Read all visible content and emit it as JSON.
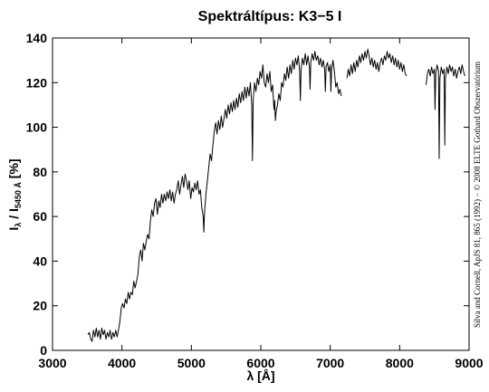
{
  "chart_data": {
    "type": "line",
    "title": "Spektráltípus: K3−5 I",
    "xlabel": "λ [Å]",
    "ylabel": {
      "main": "I",
      "sub1": "λ",
      "mid": " / I",
      "sub2": "5450 Å",
      "tail": " [%]"
    },
    "credit": "Silva and Cornell, ApJS 81, 865 (1992) − © 2008 ELTE Gothard Obszervatórium",
    "xlim": [
      3000,
      9000
    ],
    "ylim": [
      0,
      140
    ],
    "xticks": [
      "3000",
      "4000",
      "5000",
      "6000",
      "7000",
      "8000",
      "9000"
    ],
    "yticks": [
      "0",
      "20",
      "40",
      "60",
      "80",
      "100",
      "120",
      "140"
    ],
    "grid": false,
    "series": [
      {
        "segments": [
          [
            [
              3510,
              7
            ],
            [
              3530,
              8
            ],
            [
              3550,
              5
            ],
            [
              3570,
              4
            ],
            [
              3590,
              9
            ],
            [
              3610,
              6
            ],
            [
              3630,
              10
            ],
            [
              3650,
              6
            ],
            [
              3670,
              9
            ],
            [
              3690,
              5
            ],
            [
              3710,
              10
            ],
            [
              3730,
              7
            ],
            [
              3750,
              9
            ],
            [
              3770,
              5
            ],
            [
              3790,
              8
            ],
            [
              3810,
              6
            ],
            [
              3830,
              9
            ],
            [
              3850,
              5
            ],
            [
              3870,
              8
            ],
            [
              3890,
              6
            ],
            [
              3910,
              9
            ],
            [
              3930,
              6
            ],
            [
              3950,
              9
            ],
            [
              3970,
              13
            ],
            [
              3990,
              19
            ],
            [
              4010,
              21
            ],
            [
              4030,
              19
            ],
            [
              4050,
              23
            ],
            [
              4070,
              21
            ],
            [
              4090,
              26
            ],
            [
              4110,
              23
            ],
            [
              4130,
              26
            ],
            [
              4150,
              25
            ],
            [
              4170,
              31
            ],
            [
              4190,
              28
            ],
            [
              4210,
              31
            ],
            [
              4230,
              34
            ],
            [
              4250,
              42
            ],
            [
              4270,
              45
            ],
            [
              4290,
              40
            ],
            [
              4310,
              48
            ],
            [
              4330,
              45
            ],
            [
              4350,
              49
            ],
            [
              4370,
              52
            ],
            [
              4390,
              50
            ],
            [
              4410,
              58
            ],
            [
              4430,
              63
            ],
            [
              4450,
              60
            ],
            [
              4470,
              66
            ],
            [
              4490,
              68
            ],
            [
              4510,
              61
            ],
            [
              4530,
              67
            ],
            [
              4550,
              64
            ],
            [
              4570,
              70
            ],
            [
              4590,
              66
            ],
            [
              4610,
              70
            ],
            [
              4630,
              67
            ],
            [
              4650,
              71
            ],
            [
              4670,
              68
            ],
            [
              4690,
              72
            ],
            [
              4710,
              67
            ],
            [
              4730,
              71
            ],
            [
              4750,
              66
            ],
            [
              4770,
              70
            ],
            [
              4790,
              72
            ],
            [
              4810,
              76
            ],
            [
              4830,
              70
            ],
            [
              4850,
              74
            ],
            [
              4870,
              78
            ],
            [
              4890,
              73
            ],
            [
              4910,
              79
            ],
            [
              4930,
              76
            ],
            [
              4950,
              72
            ],
            [
              4970,
              76
            ],
            [
              4990,
              68
            ],
            [
              5010,
              73
            ],
            [
              5030,
              71
            ],
            [
              5050,
              75
            ],
            [
              5070,
              72
            ],
            [
              5090,
              76
            ],
            [
              5110,
              70
            ],
            [
              5130,
              72
            ],
            [
              5150,
              64
            ],
            [
              5170,
              60
            ],
            [
              5180,
              53
            ],
            [
              5190,
              62
            ],
            [
              5210,
              70
            ],
            [
              5230,
              76
            ],
            [
              5250,
              82
            ],
            [
              5270,
              88
            ],
            [
              5290,
              85
            ],
            [
              5310,
              92
            ],
            [
              5330,
              98
            ],
            [
              5350,
              102
            ],
            [
              5370,
              97
            ],
            [
              5390,
              103
            ],
            [
              5410,
              99
            ],
            [
              5430,
              105
            ],
            [
              5450,
              100
            ],
            [
              5470,
              104
            ],
            [
              5490,
              108
            ],
            [
              5510,
              104
            ],
            [
              5530,
              110
            ],
            [
              5550,
              106
            ],
            [
              5570,
              111
            ],
            [
              5590,
              107
            ],
            [
              5610,
              112
            ],
            [
              5630,
              108
            ],
            [
              5650,
              113
            ],
            [
              5670,
              109
            ],
            [
              5690,
              115
            ],
            [
              5710,
              111
            ],
            [
              5730,
              116
            ],
            [
              5750,
              112
            ],
            [
              5770,
              118
            ],
            [
              5790,
              113
            ],
            [
              5810,
              118
            ],
            [
              5830,
              114
            ],
            [
              5850,
              120
            ],
            [
              5870,
              110
            ],
            [
              5880,
              85
            ],
            [
              5890,
              112
            ],
            [
              5910,
              120
            ],
            [
              5930,
              116
            ],
            [
              5950,
              122
            ],
            [
              5970,
              119
            ],
            [
              5990,
              125
            ],
            [
              6010,
              122
            ],
            [
              6030,
              128
            ],
            [
              6050,
              120
            ],
            [
              6070,
              118
            ],
            [
              6090,
              124
            ],
            [
              6110,
              120
            ],
            [
              6130,
              125
            ],
            [
              6150,
              116
            ],
            [
              6170,
              119
            ],
            [
              6190,
              108
            ],
            [
              6200,
              112
            ],
            [
              6210,
              103
            ],
            [
              6220,
              107
            ],
            [
              6240,
              110
            ],
            [
              6260,
              115
            ],
            [
              6280,
              112
            ],
            [
              6300,
              120
            ],
            [
              6320,
              118
            ],
            [
              6340,
              124
            ],
            [
              6360,
              121
            ],
            [
              6380,
              127
            ],
            [
              6400,
              122
            ],
            [
              6420,
              128
            ],
            [
              6440,
              124
            ],
            [
              6460,
              130
            ],
            [
              6480,
              126
            ],
            [
              6500,
              131
            ],
            [
              6520,
              128
            ],
            [
              6540,
              132
            ],
            [
              6560,
              125
            ],
            [
              6570,
              112
            ],
            [
              6580,
              126
            ],
            [
              6600,
              131
            ],
            [
              6620,
              128
            ],
            [
              6640,
              133
            ],
            [
              6660,
              128
            ],
            [
              6680,
              132
            ],
            [
              6700,
              127
            ],
            [
              6710,
              117
            ],
            [
              6720,
              129
            ],
            [
              6740,
              133
            ],
            [
              6760,
              130
            ],
            [
              6780,
              134
            ],
            [
              6800,
              130
            ],
            [
              6820,
              132
            ],
            [
              6840,
              128
            ],
            [
              6860,
              131
            ],
            [
              6880,
              127
            ],
            [
              6900,
              130
            ],
            [
              6920,
              126
            ],
            [
              6930,
              116
            ],
            [
              6940,
              127
            ],
            [
              6960,
              129
            ],
            [
              6980,
              125
            ],
            [
              7000,
              128
            ],
            [
              7010,
              116
            ],
            [
              7020,
              126
            ],
            [
              7040,
              130
            ],
            [
              7060,
              125
            ],
            [
              7080,
              118
            ],
            [
              7100,
              120
            ],
            [
              7120,
              115
            ],
            [
              7140,
              117
            ],
            [
              7160,
              114
            ]
          ],
          [
            [
              7240,
              122
            ],
            [
              7260,
              126
            ],
            [
              7280,
              123
            ],
            [
              7300,
              128
            ],
            [
              7320,
              124
            ],
            [
              7340,
              129
            ],
            [
              7360,
              125
            ],
            [
              7380,
              130
            ],
            [
              7400,
              127
            ],
            [
              7420,
              132
            ],
            [
              7440,
              129
            ],
            [
              7460,
              133
            ],
            [
              7480,
              130
            ],
            [
              7500,
              134
            ],
            [
              7520,
              131
            ],
            [
              7540,
              135
            ],
            [
              7560,
              132
            ],
            [
              7580,
              128
            ],
            [
              7600,
              131
            ],
            [
              7620,
              127
            ],
            [
              7640,
              130
            ],
            [
              7660,
              126
            ],
            [
              7680,
              129
            ],
            [
              7700,
              125
            ],
            [
              7720,
              129
            ],
            [
              7740,
              131
            ],
            [
              7760,
              128
            ],
            [
              7780,
              132
            ],
            [
              7800,
              130
            ],
            [
              7820,
              134
            ],
            [
              7840,
              131
            ],
            [
              7860,
              133
            ],
            [
              7880,
              129
            ],
            [
              7900,
              132
            ],
            [
              7920,
              128
            ],
            [
              7940,
              131
            ],
            [
              7960,
              127
            ],
            [
              7980,
              130
            ],
            [
              8000,
              126
            ],
            [
              8020,
              129
            ],
            [
              8040,
              125
            ],
            [
              8060,
              128
            ],
            [
              8080,
              124
            ],
            [
              8100,
              123
            ]
          ],
          [
            [
              8380,
              119
            ],
            [
              8400,
              124
            ],
            [
              8420,
              126
            ],
            [
              8440,
              123
            ],
            [
              8460,
              127
            ],
            [
              8480,
              124
            ],
            [
              8500,
              126
            ],
            [
              8510,
              108
            ],
            [
              8520,
              124
            ],
            [
              8540,
              128
            ],
            [
              8560,
              125
            ],
            [
              8570,
              86
            ],
            [
              8580,
              122
            ],
            [
              8600,
              127
            ],
            [
              8620,
              124
            ],
            [
              8640,
              126
            ],
            [
              8650,
              92
            ],
            [
              8660,
              122
            ],
            [
              8680,
              127
            ],
            [
              8700,
              124
            ],
            [
              8720,
              128
            ],
            [
              8740,
              125
            ],
            [
              8760,
              127
            ],
            [
              8780,
              123
            ],
            [
              8800,
              126
            ],
            [
              8820,
              122
            ],
            [
              8840,
              125
            ],
            [
              8860,
              127
            ],
            [
              8880,
              124
            ],
            [
              8900,
              128
            ],
            [
              8920,
              125
            ],
            [
              8940,
              123
            ]
          ]
        ]
      }
    ]
  }
}
